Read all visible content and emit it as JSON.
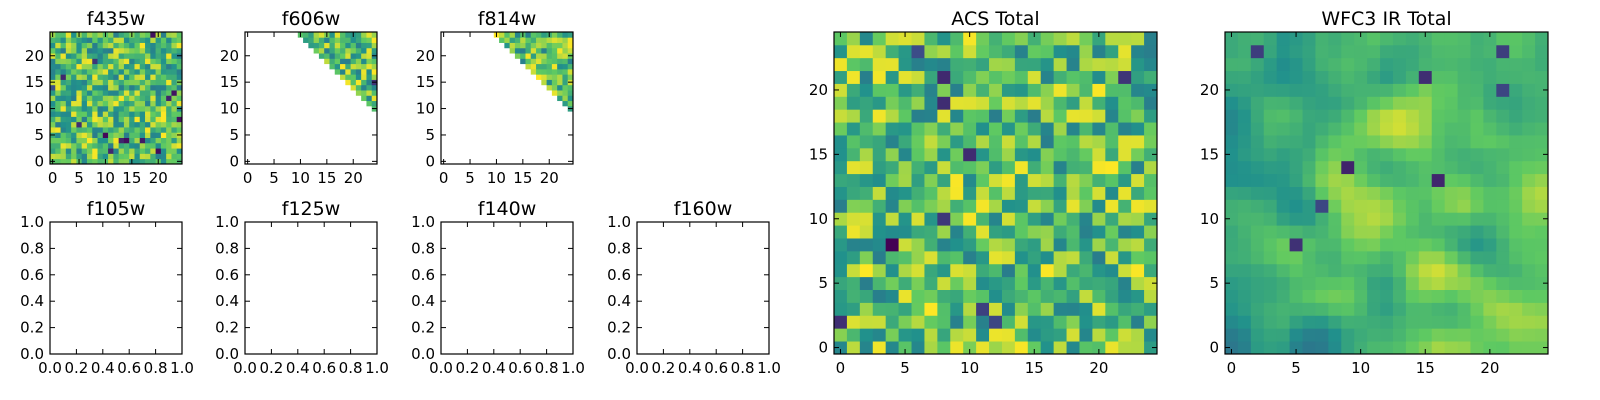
{
  "figure": {
    "colormap": [
      "#440154",
      "#3b528b",
      "#21918c",
      "#5ec962",
      "#fde725"
    ]
  },
  "chart_data": [
    {
      "type": "heatmap",
      "title": "f435w",
      "grid": false,
      "xlim": [
        -0.5,
        24.5
      ],
      "ylim": [
        -0.5,
        24.5
      ],
      "xticks": [
        0,
        5,
        10,
        15,
        20
      ],
      "yticks": [
        0,
        5,
        10,
        15,
        20
      ],
      "seed": 11,
      "mask": "none",
      "smooth": 0,
      "dark_cells": 14
    },
    {
      "type": "heatmap",
      "title": "f606w",
      "grid": false,
      "xlim": [
        -0.5,
        24.5
      ],
      "ylim": [
        -0.5,
        24.5
      ],
      "xticks": [
        0,
        5,
        10,
        15,
        20
      ],
      "yticks": [
        0,
        5,
        10,
        15,
        20
      ],
      "seed": 23,
      "mask": "x + y >= 34",
      "smooth": 0,
      "dark_cells": 3
    },
    {
      "type": "heatmap",
      "title": "f814w",
      "grid": false,
      "xlim": [
        -0.5,
        24.5
      ],
      "ylim": [
        -0.5,
        24.5
      ],
      "xticks": [
        0,
        5,
        10,
        15,
        20
      ],
      "yticks": [
        0,
        5,
        10,
        15,
        20
      ],
      "seed": 37,
      "mask": "x + y >= 34",
      "smooth": 0,
      "dark_cells": 3
    },
    {
      "type": "heatmap",
      "title": "f105w",
      "empty": true,
      "grid": false,
      "xlim": [
        0,
        1
      ],
      "ylim": [
        0,
        1
      ],
      "xticks": [
        "0.0",
        "0.2",
        "0.4",
        "0.6",
        "0.8",
        "1.0"
      ],
      "yticks": [
        "0.0",
        "0.2",
        "0.4",
        "0.6",
        "0.8",
        "1.0"
      ]
    },
    {
      "type": "heatmap",
      "title": "f125w",
      "empty": true,
      "grid": false,
      "xlim": [
        0,
        1
      ],
      "ylim": [
        0,
        1
      ],
      "xticks": [
        "0.0",
        "0.2",
        "0.4",
        "0.6",
        "0.8",
        "1.0"
      ],
      "yticks": [
        "0.0",
        "0.2",
        "0.4",
        "0.6",
        "0.8",
        "1.0"
      ]
    },
    {
      "type": "heatmap",
      "title": "f140w",
      "empty": true,
      "grid": false,
      "xlim": [
        0,
        1
      ],
      "ylim": [
        0,
        1
      ],
      "xticks": [
        "0.0",
        "0.2",
        "0.4",
        "0.6",
        "0.8",
        "1.0"
      ],
      "yticks": [
        "0.0",
        "0.2",
        "0.4",
        "0.6",
        "0.8",
        "1.0"
      ]
    },
    {
      "type": "heatmap",
      "title": "f160w",
      "empty": true,
      "grid": false,
      "xlim": [
        0,
        1
      ],
      "ylim": [
        0,
        1
      ],
      "xticks": [
        "0.0",
        "0.2",
        "0.4",
        "0.6",
        "0.8",
        "1.0"
      ],
      "yticks": [
        "0.0",
        "0.2",
        "0.4",
        "0.6",
        "0.8",
        "1.0"
      ]
    },
    {
      "type": "heatmap",
      "title": "ACS Total",
      "grid": false,
      "xlim": [
        -0.5,
        24.5
      ],
      "ylim": [
        -0.5,
        24.5
      ],
      "xticks": [
        0,
        5,
        10,
        15,
        20
      ],
      "yticks": [
        0,
        5,
        10,
        15,
        20
      ],
      "seed": 53,
      "mask": "none",
      "smooth": 0,
      "dark_cells": 10
    },
    {
      "type": "heatmap",
      "title": "WFC3 IR Total",
      "grid": false,
      "xlim": [
        -0.5,
        24.5
      ],
      "ylim": [
        -0.5,
        24.5
      ],
      "xticks": [
        0,
        5,
        10,
        15,
        20
      ],
      "yticks": [
        0,
        5,
        10,
        15,
        20
      ],
      "seed": 71,
      "mask": "none",
      "smooth": 2,
      "dark_cells": 8
    }
  ]
}
